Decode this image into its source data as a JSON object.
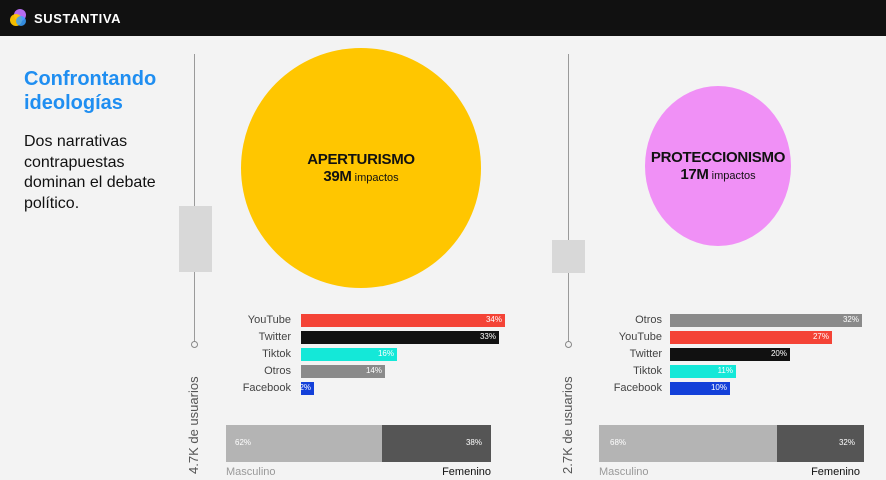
{
  "header": {
    "brand": "SUSTANTIVA"
  },
  "intro": {
    "title": "Confrontando ideologías",
    "subtitle": "Dos narrativas contrapuestas dominan el debate político."
  },
  "colors": {
    "aperturismo": "#ffc600",
    "proteccionismo": "#f090f6",
    "youtube": "#f44336",
    "twitter": "#111111",
    "tiktok": "#14e8d8",
    "otros": "#8a8a8a",
    "facebook": "#1340d9",
    "masculino": "#b4b4b4",
    "femenino": "#555555",
    "title": "#1f8ef1"
  },
  "panels": [
    {
      "name": "APERTURISMO",
      "impact_value": "39M",
      "impact_unit": "impactos",
      "users_label": "4.7K de usuarios",
      "platforms": [
        {
          "label": "YouTube",
          "value": 34,
          "value_label": "34%",
          "color": "#f44336"
        },
        {
          "label": "Twitter",
          "value": 33,
          "value_label": "33%",
          "color": "#111111"
        },
        {
          "label": "Tiktok",
          "value": 16,
          "value_label": "16%",
          "color": "#14e8d8"
        },
        {
          "label": "Otros",
          "value": 14,
          "value_label": "14%",
          "color": "#8a8a8a"
        },
        {
          "label": "Facebook",
          "value": 2,
          "value_label": "2%",
          "color": "#1340d9"
        }
      ],
      "gender": {
        "masculino": 62,
        "masculino_label": "62%",
        "masculino_text": "Masculino",
        "femenino": 38,
        "femenino_label": "38%",
        "femenino_text": "Femenino"
      }
    },
    {
      "name": "PROTECCIONISMO",
      "impact_value": "17M",
      "impact_unit": "impactos",
      "users_label": "2.7K de usuarios",
      "platforms": [
        {
          "label": "Otros",
          "value": 32,
          "value_label": "32%",
          "color": "#8a8a8a"
        },
        {
          "label": "YouTube",
          "value": 27,
          "value_label": "27%",
          "color": "#f44336"
        },
        {
          "label": "Twitter",
          "value": 20,
          "value_label": "20%",
          "color": "#111111"
        },
        {
          "label": "Tiktok",
          "value": 11,
          "value_label": "11%",
          "color": "#14e8d8"
        },
        {
          "label": "Facebook",
          "value": 10,
          "value_label": "10%",
          "color": "#1340d9"
        }
      ],
      "gender": {
        "masculino": 68,
        "masculino_label": "68%",
        "masculino_text": "Masculino",
        "femenino": 32,
        "femenino_label": "32%",
        "femenino_text": "Femenino"
      }
    }
  ]
}
